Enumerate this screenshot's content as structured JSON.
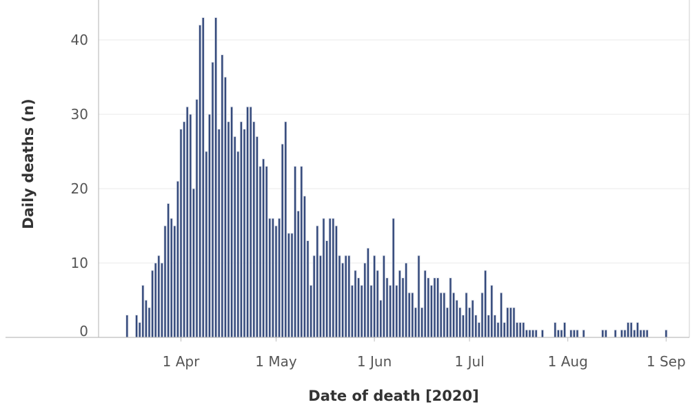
{
  "chart_data": {
    "type": "bar",
    "xlabel": "Date of death [2020]",
    "ylabel": "Daily deaths (n)",
    "ylim": [
      0,
      46
    ],
    "yticks": [
      0,
      10,
      20,
      30,
      40
    ],
    "xticks": [
      {
        "date": "2020-04-01",
        "label": "1 Apr"
      },
      {
        "date": "2020-05-01",
        "label": "1 May"
      },
      {
        "date": "2020-06-01",
        "label": "1 Jun"
      },
      {
        "date": "2020-07-01",
        "label": "1 Jul"
      },
      {
        "date": "2020-08-01",
        "label": "1 Aug"
      },
      {
        "date": "2020-09-01",
        "label": "1 Sep"
      }
    ],
    "grid": true,
    "bar_color": "#34497b",
    "x": [
      "2020-03-15",
      "2020-03-16",
      "2020-03-17",
      "2020-03-18",
      "2020-03-19",
      "2020-03-20",
      "2020-03-21",
      "2020-03-22",
      "2020-03-23",
      "2020-03-24",
      "2020-03-25",
      "2020-03-26",
      "2020-03-27",
      "2020-03-28",
      "2020-03-29",
      "2020-03-30",
      "2020-03-31",
      "2020-04-01",
      "2020-04-02",
      "2020-04-03",
      "2020-04-04",
      "2020-04-05",
      "2020-04-06",
      "2020-04-07",
      "2020-04-08",
      "2020-04-09",
      "2020-04-10",
      "2020-04-11",
      "2020-04-12",
      "2020-04-13",
      "2020-04-14",
      "2020-04-15",
      "2020-04-16",
      "2020-04-17",
      "2020-04-18",
      "2020-04-19",
      "2020-04-20",
      "2020-04-21",
      "2020-04-22",
      "2020-04-23",
      "2020-04-24",
      "2020-04-25",
      "2020-04-26",
      "2020-04-27",
      "2020-04-28",
      "2020-04-29",
      "2020-04-30",
      "2020-05-01",
      "2020-05-02",
      "2020-05-03",
      "2020-05-04",
      "2020-05-05",
      "2020-05-06",
      "2020-05-07",
      "2020-05-08",
      "2020-05-09",
      "2020-05-10",
      "2020-05-11",
      "2020-05-12",
      "2020-05-13",
      "2020-05-14",
      "2020-05-15",
      "2020-05-16",
      "2020-05-17",
      "2020-05-18",
      "2020-05-19",
      "2020-05-20",
      "2020-05-21",
      "2020-05-22",
      "2020-05-23",
      "2020-05-24",
      "2020-05-25",
      "2020-05-26",
      "2020-05-27",
      "2020-05-28",
      "2020-05-29",
      "2020-05-30",
      "2020-05-31",
      "2020-06-01",
      "2020-06-02",
      "2020-06-03",
      "2020-06-04",
      "2020-06-05",
      "2020-06-06",
      "2020-06-07",
      "2020-06-08",
      "2020-06-09",
      "2020-06-10",
      "2020-06-11",
      "2020-06-12",
      "2020-06-13",
      "2020-06-14",
      "2020-06-15",
      "2020-06-16",
      "2020-06-17",
      "2020-06-18",
      "2020-06-19",
      "2020-06-20",
      "2020-06-21",
      "2020-06-22",
      "2020-06-23",
      "2020-06-24",
      "2020-06-25",
      "2020-06-26",
      "2020-06-27",
      "2020-06-28",
      "2020-06-29",
      "2020-06-30",
      "2020-07-01",
      "2020-07-02",
      "2020-07-03",
      "2020-07-04",
      "2020-07-05",
      "2020-07-06",
      "2020-07-07",
      "2020-07-08",
      "2020-07-09",
      "2020-07-10",
      "2020-07-11",
      "2020-07-12",
      "2020-07-13",
      "2020-07-14",
      "2020-07-15",
      "2020-07-16",
      "2020-07-17",
      "2020-07-18",
      "2020-07-19",
      "2020-07-20",
      "2020-07-21",
      "2020-07-22",
      "2020-07-23",
      "2020-07-24",
      "2020-07-25",
      "2020-07-26",
      "2020-07-27",
      "2020-07-28",
      "2020-07-29",
      "2020-07-30",
      "2020-07-31",
      "2020-08-01",
      "2020-08-02",
      "2020-08-03",
      "2020-08-04",
      "2020-08-05",
      "2020-08-06",
      "2020-08-07",
      "2020-08-08",
      "2020-08-09",
      "2020-08-10",
      "2020-08-11",
      "2020-08-12",
      "2020-08-13",
      "2020-08-14",
      "2020-08-15",
      "2020-08-16",
      "2020-08-17",
      "2020-08-18",
      "2020-08-19",
      "2020-08-20",
      "2020-08-21",
      "2020-08-22",
      "2020-08-23",
      "2020-08-24",
      "2020-08-25",
      "2020-08-26",
      "2020-08-27",
      "2020-08-28",
      "2020-08-29",
      "2020-08-30",
      "2020-08-31",
      "2020-09-01"
    ],
    "values": [
      3,
      0,
      0,
      3,
      2,
      7,
      5,
      4,
      9,
      10,
      11,
      10,
      15,
      18,
      16,
      15,
      21,
      28,
      29,
      31,
      30,
      20,
      32,
      42,
      43,
      25,
      30,
      37,
      43,
      28,
      38,
      35,
      29,
      31,
      27,
      25,
      29,
      28,
      31,
      31,
      29,
      27,
      23,
      24,
      23,
      16,
      16,
      15,
      16,
      26,
      29,
      14,
      14,
      23,
      17,
      23,
      19,
      13,
      7,
      11,
      15,
      11,
      16,
      13,
      16,
      16,
      15,
      11,
      10,
      11,
      11,
      7,
      9,
      8,
      7,
      10,
      12,
      7,
      11,
      9,
      5,
      11,
      8,
      7,
      16,
      7,
      9,
      8,
      10,
      6,
      6,
      4,
      11,
      4,
      9,
      8,
      7,
      8,
      8,
      6,
      6,
      4,
      8,
      6,
      5,
      4,
      3,
      6,
      4,
      5,
      3,
      2,
      6,
      9,
      3,
      7,
      3,
      2,
      6,
      2,
      4,
      4,
      4,
      2,
      2,
      2,
      1,
      1,
      1,
      1,
      0,
      1,
      0,
      0,
      0,
      2,
      1,
      1,
      2,
      0,
      1,
      1,
      1,
      0,
      1,
      0,
      0,
      0,
      0,
      0,
      1,
      1,
      0,
      0,
      1,
      0,
      1,
      1,
      2,
      2,
      1,
      2,
      1,
      1,
      1,
      0,
      0,
      0,
      0,
      0,
      1
    ]
  }
}
